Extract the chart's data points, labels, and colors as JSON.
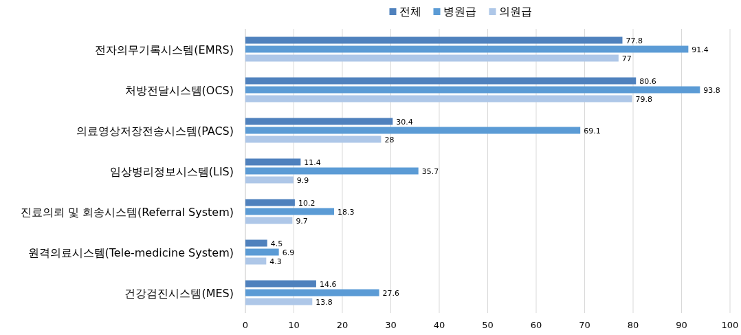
{
  "chart_data": {
    "type": "bar",
    "orientation": "horizontal",
    "categories": [
      "전자의무기록시스템(EMRS)",
      "처방전달시스템(OCS)",
      "의료영상저장전송시스템(PACS)",
      "임상병리정보시스템(LIS)",
      "진료의뢰 및 회송시스템(Referral System)",
      "원격의료시스템(Tele-medicine System)",
      "건강검진시스템(MES)"
    ],
    "series": [
      {
        "name": "전체",
        "color": "#4f81bd",
        "values": [
          77.8,
          80.6,
          30.4,
          11.4,
          10.2,
          4.5,
          14.6
        ]
      },
      {
        "name": "병원급",
        "color": "#5b9bd5",
        "values": [
          91.4,
          93.8,
          69.1,
          35.7,
          18.3,
          6.9,
          27.6
        ]
      },
      {
        "name": "의원급",
        "color": "#aec7e8",
        "values": [
          77,
          79.8,
          28,
          9.9,
          9.7,
          4.3,
          13.8
        ]
      }
    ],
    "xlim": [
      0,
      100
    ],
    "xticks": [
      0,
      10,
      20,
      30,
      40,
      50,
      60,
      70,
      80,
      90,
      100
    ],
    "grid": "x",
    "legend": "top",
    "data_labels": true
  }
}
